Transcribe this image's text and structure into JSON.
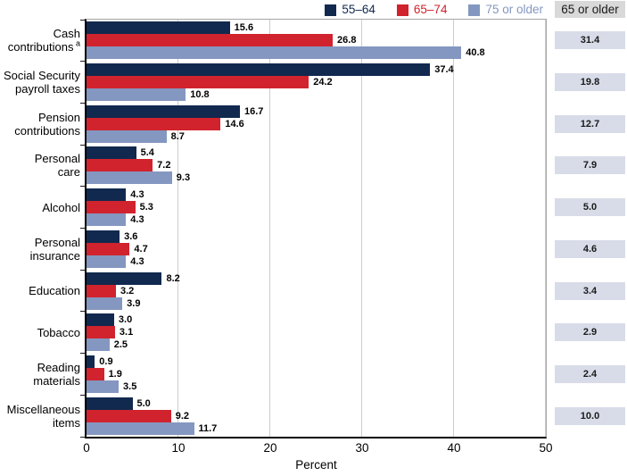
{
  "chart_data": {
    "type": "bar",
    "orientation": "horizontal",
    "title": "",
    "xlabel": "Percent",
    "xlim": [
      0,
      50
    ],
    "xticks": [
      0,
      10,
      20,
      30,
      40,
      50
    ],
    "grid": "vertical",
    "legend_position": "top-right",
    "categories": [
      {
        "label": "Cash contributions",
        "lines": [
          "Cash",
          "contributions"
        ],
        "superscript": "a"
      },
      {
        "label": "Social Security payroll taxes",
        "lines": [
          "Social Security",
          "payroll taxes"
        ],
        "superscript": ""
      },
      {
        "label": "Pension contributions",
        "lines": [
          "Pension",
          "contributions"
        ],
        "superscript": ""
      },
      {
        "label": "Personal care",
        "lines": [
          "Personal",
          "care"
        ],
        "superscript": ""
      },
      {
        "label": "Alcohol",
        "lines": [
          "Alcohol"
        ],
        "superscript": ""
      },
      {
        "label": "Personal insurance",
        "lines": [
          "Personal",
          "insurance"
        ],
        "superscript": ""
      },
      {
        "label": "Education",
        "lines": [
          "Education"
        ],
        "superscript": ""
      },
      {
        "label": "Tobacco",
        "lines": [
          "Tobacco"
        ],
        "superscript": ""
      },
      {
        "label": "Reading materials",
        "lines": [
          "Reading",
          "materials"
        ],
        "superscript": ""
      },
      {
        "label": "Miscellaneous items",
        "lines": [
          "Miscellaneous",
          "items"
        ],
        "superscript": ""
      }
    ],
    "series": [
      {
        "name": "55–64",
        "color": "#11294e",
        "values": [
          15.6,
          37.4,
          16.7,
          5.4,
          4.3,
          3.6,
          8.2,
          3.0,
          0.9,
          5.0
        ]
      },
      {
        "name": "65–74",
        "color": "#d0232e",
        "values": [
          26.8,
          24.2,
          14.6,
          7.2,
          5.3,
          4.7,
          3.2,
          3.1,
          1.9,
          9.2
        ]
      },
      {
        "name": "75 or older",
        "color": "#8497c0",
        "values": [
          40.8,
          10.8,
          8.7,
          9.3,
          4.3,
          4.3,
          3.9,
          2.5,
          3.5,
          11.7
        ]
      }
    ],
    "summary_column": {
      "header": "65 or older",
      "values": [
        31.4,
        19.8,
        12.7,
        7.9,
        5.0,
        4.6,
        3.4,
        2.9,
        2.4,
        10.0
      ],
      "box_color": "#d8dce8",
      "header_color": "#d9d9d9"
    }
  },
  "colors": {
    "grid": "#cdcdcd",
    "plot_border": "#a6a6a6",
    "axis": "#000000"
  }
}
